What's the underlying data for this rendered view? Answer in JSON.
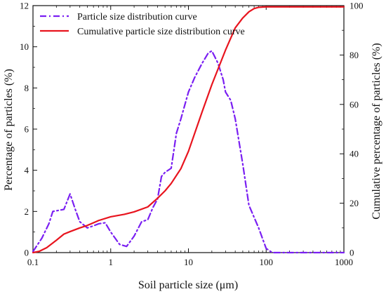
{
  "chart_data": {
    "type": "line",
    "xlabel": "Soil particle size (μm)",
    "ylabel_left": "Percentage of particles  (%)",
    "ylabel_right": "Cumulative percentage of particles (%)",
    "x_scale": "log",
    "xlim": [
      0.1,
      1000
    ],
    "ylim_left": [
      0,
      12
    ],
    "ylim_right": [
      0,
      100
    ],
    "x_ticks": [
      {
        "v": 0.1,
        "label": "0.1"
      },
      {
        "v": 1,
        "label": "1"
      },
      {
        "v": 10,
        "label": "10"
      },
      {
        "v": 100,
        "label": "100"
      },
      {
        "v": 1000,
        "label": "1000"
      }
    ],
    "y_ticks_left": [
      0,
      2,
      4,
      6,
      8,
      10,
      12
    ],
    "y_ticks_right": [
      0,
      20,
      40,
      60,
      80,
      100
    ],
    "legend_position": "top-left",
    "series": [
      {
        "name": "Particle size distribution curve",
        "axis": "left",
        "color": "#7a1ff2",
        "style": "dash-dot",
        "x": [
          0.1,
          0.13,
          0.16,
          0.18,
          0.25,
          0.3,
          0.35,
          0.4,
          0.5,
          0.6,
          0.7,
          0.85,
          1.0,
          1.3,
          1.6,
          2.0,
          2.5,
          3.0,
          3.5,
          4.0,
          4.5,
          5.0,
          6.0,
          7.0,
          8.0,
          10.0,
          12.0,
          15.0,
          18.0,
          20.0,
          24.0,
          28.0,
          30.0,
          35.0,
          40.0,
          50.0,
          60.0,
          80.0,
          100.0,
          120.0,
          200.0,
          400.0,
          700.0,
          1000.0
        ],
        "y": [
          0.05,
          0.7,
          1.4,
          2.0,
          2.1,
          2.85,
          2.1,
          1.5,
          1.2,
          1.3,
          1.4,
          1.45,
          1.0,
          0.4,
          0.3,
          0.8,
          1.5,
          1.6,
          2.2,
          2.6,
          3.7,
          3.9,
          4.1,
          5.8,
          6.5,
          7.8,
          8.5,
          9.2,
          9.7,
          9.8,
          9.2,
          8.4,
          7.8,
          7.4,
          6.5,
          4.3,
          2.3,
          1.2,
          0.2,
          0.0,
          0.0,
          0.0,
          0.0,
          0.0
        ]
      },
      {
        "name": "Cumulative particle size distribution curve",
        "axis": "right",
        "color": "#e8141e",
        "style": "solid",
        "x": [
          0.1,
          0.12,
          0.15,
          0.2,
          0.25,
          0.3,
          0.4,
          0.5,
          0.7,
          1.0,
          1.5,
          2.0,
          3.0,
          4.0,
          5.0,
          6.0,
          8.0,
          10.0,
          15.0,
          20.0,
          30.0,
          40.0,
          50.0,
          60.0,
          70.0,
          80.0,
          100.0,
          200.0,
          500.0,
          1000.0
        ],
        "y": [
          0.0,
          0.5,
          2.0,
          5.0,
          7.5,
          8.5,
          10.0,
          11.0,
          13.0,
          14.5,
          15.5,
          16.5,
          18.5,
          22.0,
          25.0,
          28.0,
          34.0,
          41.0,
          57.0,
          68.0,
          82.0,
          91.0,
          95.0,
          97.5,
          98.8,
          99.3,
          99.5,
          99.5,
          99.5,
          99.5
        ]
      }
    ]
  }
}
